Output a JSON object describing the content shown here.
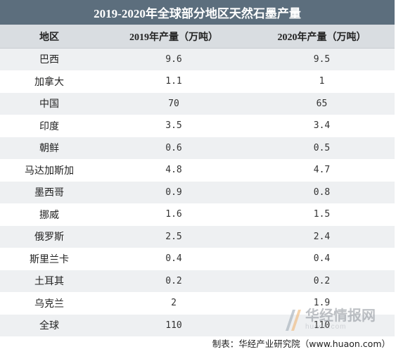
{
  "chart_data": {
    "type": "table",
    "title": "2019-2020年全球部分地区天然石墨产量",
    "columns": [
      "地区",
      "2019年产量（万吨）",
      "2020年产量（万吨）"
    ],
    "rows": [
      [
        "巴西",
        "9.6",
        "9.5"
      ],
      [
        "加拿大",
        "1.1",
        "1"
      ],
      [
        "中国",
        "70",
        "65"
      ],
      [
        "印度",
        "3.5",
        "3.4"
      ],
      [
        "朝鲜",
        "0.6",
        "0.5"
      ],
      [
        "马达加斯加",
        "4.8",
        "4.7"
      ],
      [
        "墨西哥",
        "0.9",
        "0.8"
      ],
      [
        "挪威",
        "1.6",
        "1.5"
      ],
      [
        "俄罗斯",
        "2.5",
        "2.4"
      ],
      [
        "斯里兰卡",
        "0.4",
        "0.4"
      ],
      [
        "土耳其",
        "0.2",
        "0.2"
      ],
      [
        "乌克兰",
        "2",
        "1.9"
      ],
      [
        "全球",
        "110",
        "110"
      ]
    ],
    "source": "制表：华经产业研究院（www.huaon.com）"
  },
  "watermark": {
    "name_cn": "华经情报网",
    "url": "huaon.com"
  },
  "colors": {
    "title_bg": "#5c6e7d",
    "header_bg": "#d9dde1",
    "stripe_bg": "#eef0f2"
  }
}
